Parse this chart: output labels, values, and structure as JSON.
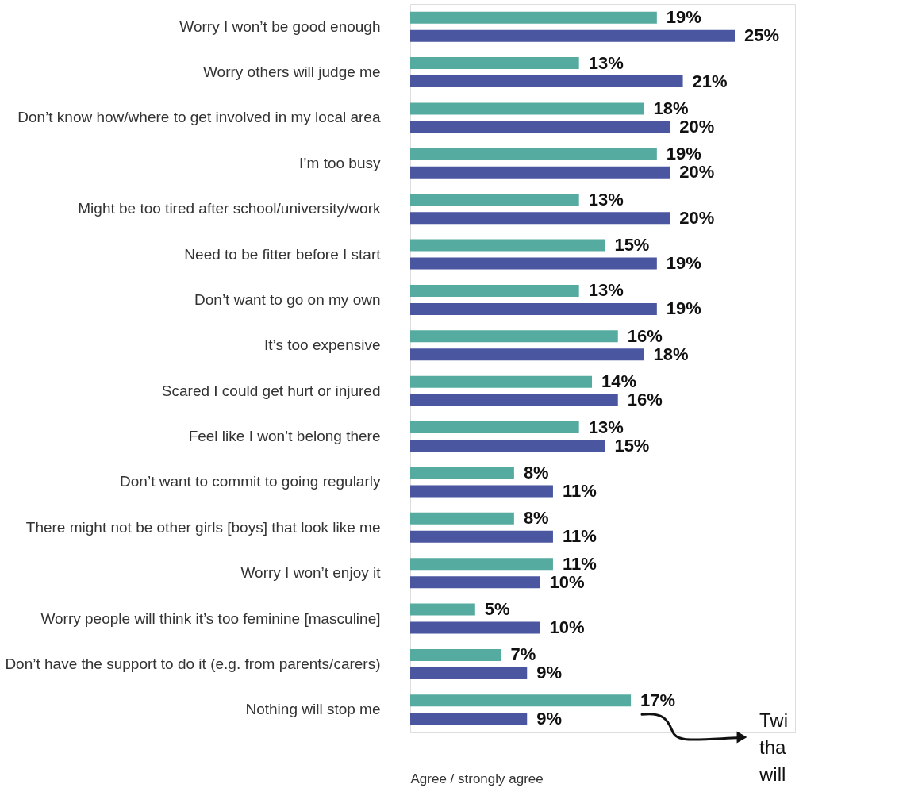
{
  "chart_data": {
    "type": "bar",
    "orientation": "horizontal",
    "xlabel": "Agree / strongly agree",
    "legend": false,
    "categories": [
      "Worry I won’t be good enough",
      "Worry others will judge me",
      "Don’t know how/where to get involved in my local area",
      "I’m too busy",
      "Might be too tired after school/university/work",
      "Need to be fitter before I start",
      "Don’t want to go on my own",
      "It’s too expensive",
      "Scared I could get hurt or injured",
      "Feel like I won’t belong there",
      "Don’t want to commit to going regularly",
      "There might not be other girls [boys] that look like me",
      "Worry I won’t enjoy it",
      "Worry people will think it’s too feminine [masculine]",
      "Don’t have the support to do it (e.g. from parents/carers)",
      "Nothing will stop me"
    ],
    "series": [
      {
        "color": "#55ab9f",
        "values": [
          19,
          13,
          18,
          19,
          13,
          15,
          13,
          16,
          14,
          13,
          8,
          8,
          11,
          5,
          7,
          17
        ],
        "value_labels": [
          "19%",
          "13%",
          "18%",
          "19%",
          "13%",
          "15%",
          "13%",
          "16%",
          "14%",
          "13%",
          "8%",
          "8%",
          "11%",
          "5%",
          "7%",
          "17%"
        ]
      },
      {
        "color": "#4a56a0",
        "values": [
          25,
          21,
          20,
          20,
          20,
          19,
          19,
          18,
          16,
          15,
          11,
          11,
          10,
          10,
          9,
          9
        ],
        "value_labels": [
          "25%",
          "21%",
          "20%",
          "20%",
          "20%",
          "19%",
          "19%",
          "18%",
          "16%",
          "15%",
          "11%",
          "11%",
          "10%",
          "10%",
          "9%",
          "9%"
        ]
      }
    ],
    "annotations": [
      "Twi tha will"
    ]
  }
}
